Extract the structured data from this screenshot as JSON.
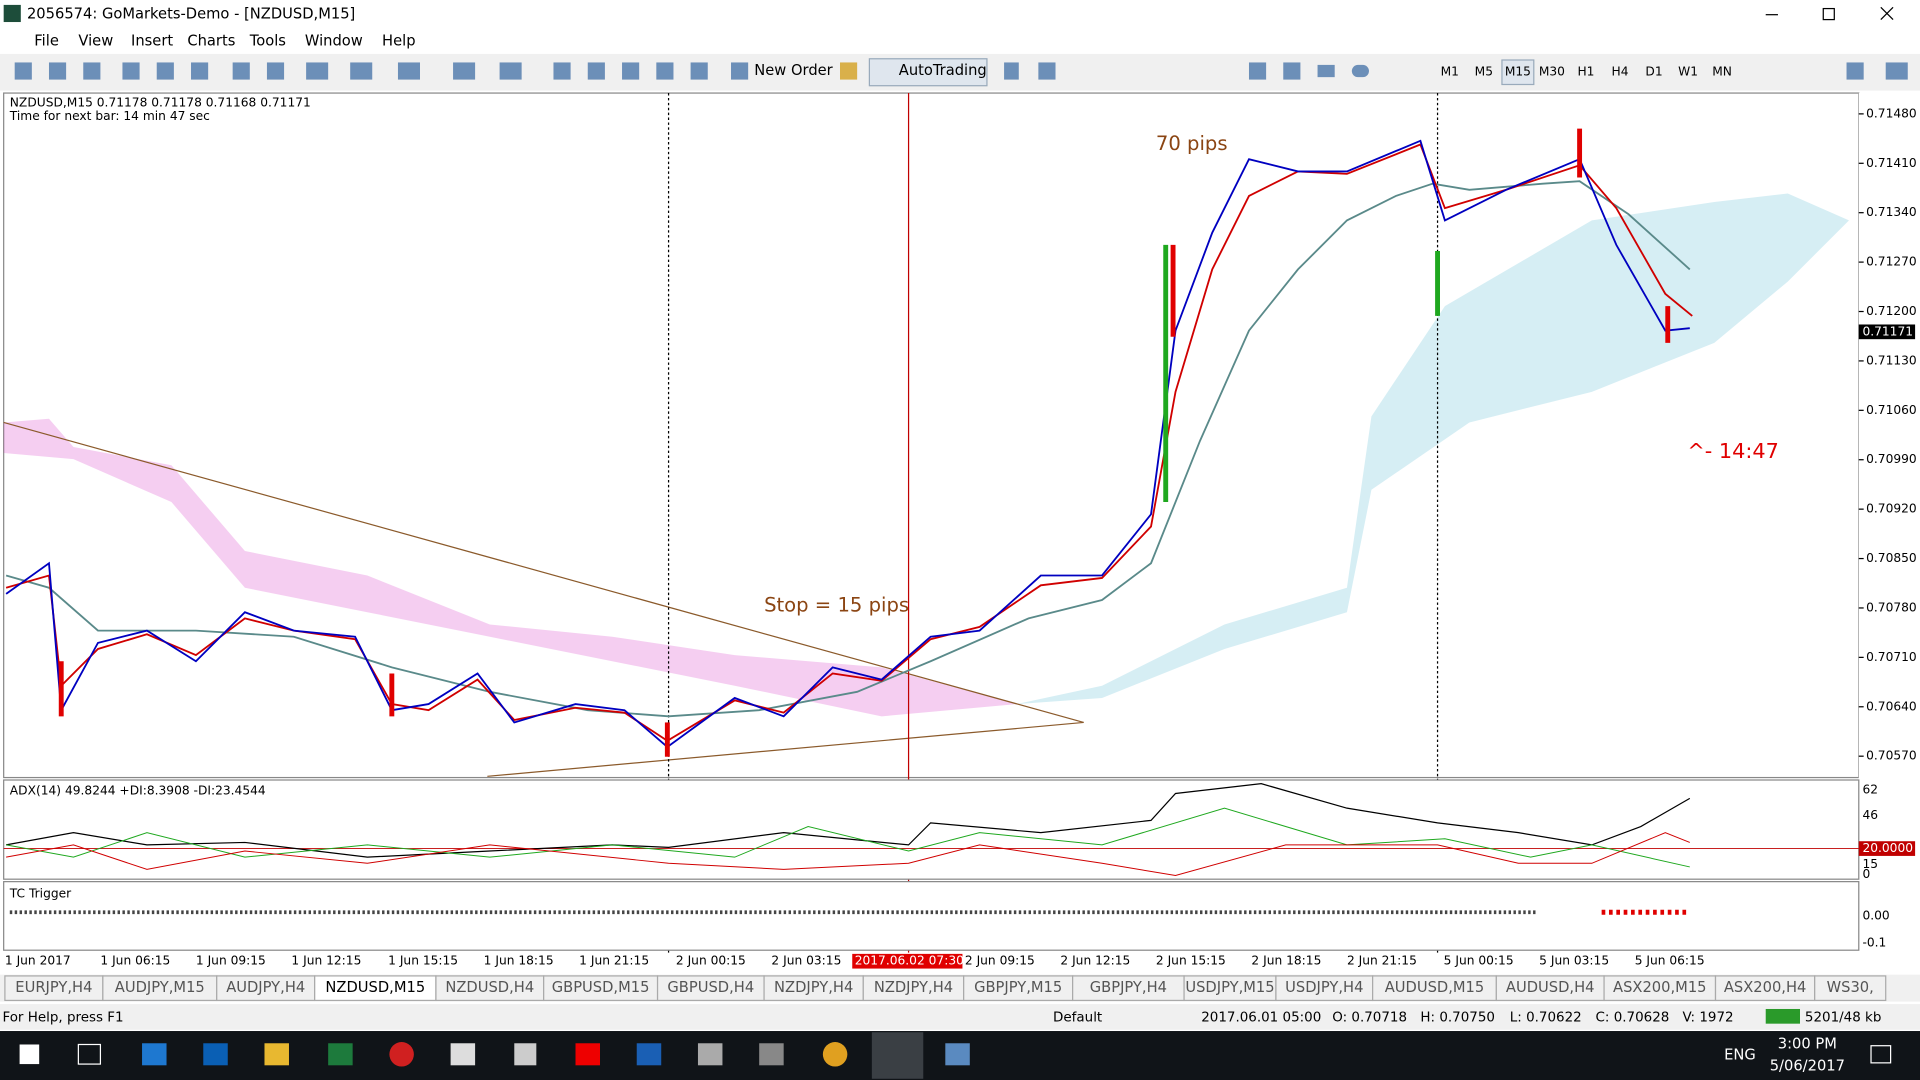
{
  "title_bar": {
    "title": "2056574: GoMarkets-Demo - [NZDUSD,M15]"
  },
  "menu": [
    "File",
    "View",
    "Insert",
    "Charts",
    "Tools",
    "Window",
    "Help"
  ],
  "toolbar": {
    "new_order": "New Order",
    "auto_trading": "AutoTrading",
    "timeframes": [
      "M1",
      "M5",
      "M15",
      "M30",
      "H1",
      "H4",
      "D1",
      "W1",
      "MN"
    ],
    "active_timeframe": 2
  },
  "chart": {
    "symbol_info": "NZDUSD,M15  0.71178 0.71178 0.71168 0.71171",
    "next_bar": "Time for next bar: 14 min 47 sec",
    "price_axis": [
      "0.71480",
      "0.71410",
      "0.71340",
      "0.71270",
      "0.71200",
      "0.71130",
      "0.71060",
      "0.70990",
      "0.70920",
      "0.70850",
      "0.70780",
      "0.70710",
      "0.70640",
      "0.70570"
    ],
    "current_price": "0.71171",
    "time_axis": [
      "1 Jun 2017",
      "1 Jun 06:15",
      "1 Jun 09:15",
      "1 Jun 12:15",
      "1 Jun 15:15",
      "1 Jun 18:15",
      "1 Jun 21:15",
      "2 Jun 00:15",
      "2 Jun 03:15",
      "2017.06.02 07:30",
      "2 Jun 09:15",
      "2 Jun 12:15",
      "2 Jun 15:15",
      "2 Jun 18:15",
      "2 Jun 21:15",
      "5 Jun 00:15",
      "5 Jun 03:15",
      "5 Jun 06:15"
    ],
    "highlighted_time": 9,
    "annotations": {
      "target": "70 pips",
      "stop": "Stop = 15 pips",
      "countdown": "^- 14:47"
    }
  },
  "adx_panel": {
    "label": "ADX(14) 49.8244 +DI:8.3908 -DI:23.4544",
    "axis": [
      "62",
      "46",
      "20.0000",
      "15",
      "0"
    ]
  },
  "tc_panel": {
    "label": "TC Trigger",
    "axis": [
      "0.00",
      "-0.1"
    ]
  },
  "tabs": [
    "EURJPY,H4",
    "AUDJPY,M15",
    "AUDJPY,H4",
    "NZDUSD,M15",
    "NZDUSD,H4",
    "GBPUSD,M15",
    "GBPUSD,H4",
    "NZDJPY,H4",
    "NZDJPY,H4",
    "GBPJPY,M15",
    "GBPJPY,H4",
    "USDJPY,M15",
    "USDJPY,H4",
    "AUDUSD,M15",
    "AUDUSD,H4",
    "ASX200,M15",
    "ASX200,H4",
    "WS30,"
  ],
  "active_tab": 3,
  "status_bar": {
    "help": "For Help, press F1",
    "profile": "Default",
    "fields": [
      "2017.06.01 05:00",
      "O: 0.70718",
      "H: 0.70750",
      "L: 0.70622",
      "C: 0.70628",
      "V: 1972"
    ],
    "traffic": "5201/48 kb"
  },
  "taskbar": {
    "language": "ENG",
    "time": "3:00 PM",
    "date": "5/06/2017"
  }
}
